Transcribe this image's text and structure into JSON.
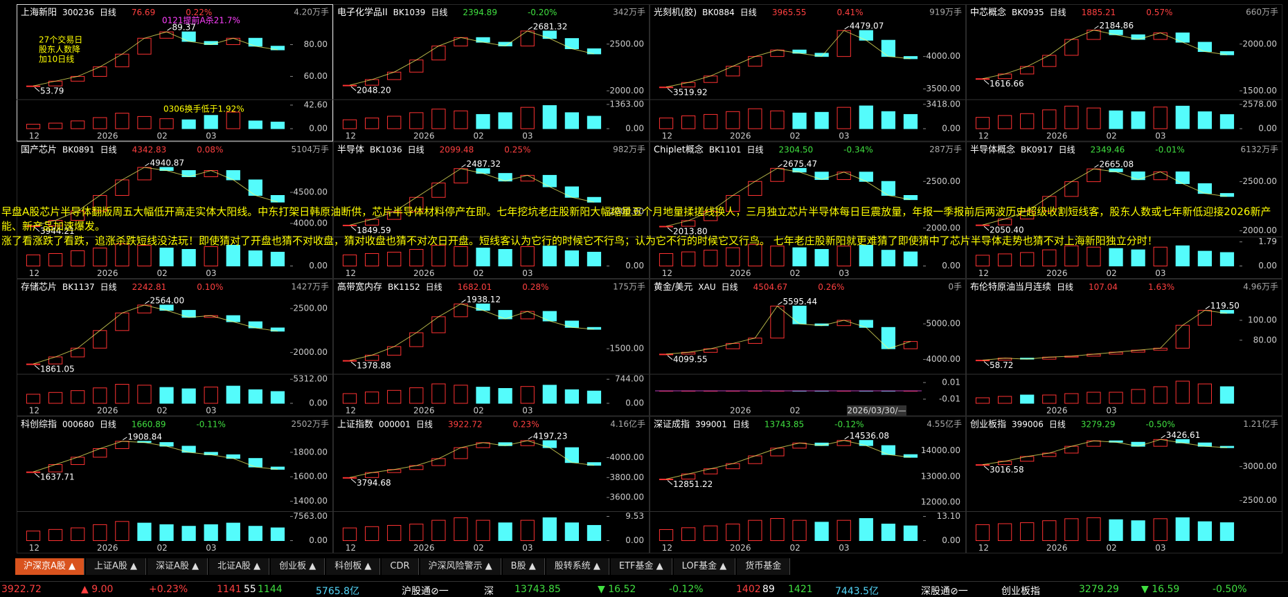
{
  "panels": [
    {
      "name": "上海新阳",
      "code": "300236",
      "period": "日线",
      "price": "76.69",
      "change": "0.22%",
      "volume": "4.20万手",
      "high": "89.37",
      "low": "53.79",
      "yticks": [
        {
          "value": 80,
          "label": "80.00"
        },
        {
          "value": 60,
          "label": "60.00"
        }
      ],
      "vticks": [
        {
          "value": 42.6,
          "label": "42.60"
        },
        {
          "value": 0,
          "label": "0.00"
        }
      ],
      "xlabels": [
        "12",
        "2026",
        "02",
        "03"
      ],
      "ylim": [
        48,
        95
      ],
      "vlim": [
        0,
        45
      ],
      "closes": [
        54,
        57,
        60,
        66,
        74,
        84,
        88,
        82,
        80,
        84,
        79,
        76.69
      ],
      "vols": [
        8,
        10,
        14,
        20,
        28,
        22,
        18,
        16,
        24,
        30,
        14,
        12
      ],
      "annotations": [
        "0121提前A杀21.7%",
        "27个交易日",
        "股东人数降",
        "加10日线",
        "0306换手低于1.92%"
      ]
    },
    {
      "name": "电子化学品II",
      "code": "BK1039",
      "period": "日线",
      "price": "2394.89",
      "change": "-0.20%",
      "volume": "342万手",
      "high": "2681.32",
      "low": "2048.20",
      "yticks": [
        {
          "value": 2500,
          "label": "2500.00"
        },
        {
          "value": 2000,
          "label": "2000.00"
        }
      ],
      "vticks": [
        {
          "value": 1363,
          "label": "1363.00"
        },
        {
          "value": 0,
          "label": "0.00"
        }
      ],
      "xlabels": [
        "12",
        "2026",
        "02",
        "03"
      ],
      "ylim": [
        1950,
        2750
      ],
      "vlim": [
        0,
        1400
      ],
      "closes": [
        2060,
        2120,
        2200,
        2330,
        2480,
        2570,
        2520,
        2480,
        2640,
        2560,
        2450,
        2394.89
      ],
      "vols": [
        500,
        600,
        700,
        900,
        1100,
        1000,
        800,
        900,
        1200,
        1300,
        900,
        700
      ]
    },
    {
      "name": "光刻机(胶)",
      "code": "BK0884",
      "period": "日线",
      "price": "3965.55",
      "change": "0.41%",
      "volume": "919万手",
      "high": "4479.07",
      "low": "3519.92",
      "yticks": [
        {
          "value": 4000,
          "label": "4000.00"
        },
        {
          "value": 3500,
          "label": "3500.00"
        }
      ],
      "vticks": [
        {
          "value": 3418,
          "label": "3418.00"
        },
        {
          "value": 0,
          "label": "0.00"
        }
      ],
      "xlabels": [
        "12",
        "2026",
        "02",
        "03"
      ],
      "ylim": [
        3400,
        4550
      ],
      "vlim": [
        0,
        3500
      ],
      "closes": [
        3530,
        3600,
        3700,
        3850,
        4000,
        4100,
        4050,
        4000,
        4400,
        4250,
        4000,
        3965.55
      ],
      "vols": [
        1500,
        1800,
        2000,
        2400,
        2800,
        2500,
        2200,
        2300,
        3000,
        3200,
        2400,
        2000
      ]
    },
    {
      "name": "中芯概念",
      "code": "BK0935",
      "period": "日线",
      "price": "1885.21",
      "change": "0.57%",
      "volume": "660万手",
      "high": "2184.86",
      "low": "1616.66",
      "yticks": [
        {
          "value": 2000,
          "label": "2000.00"
        },
        {
          "value": 1500,
          "label": "1500.00"
        }
      ],
      "vticks": [
        {
          "value": 2578,
          "label": "2578.00"
        },
        {
          "value": 0,
          "label": "0.00"
        }
      ],
      "xlabels": [
        "12",
        "2026",
        "02",
        "03"
      ],
      "ylim": [
        1450,
        2250
      ],
      "vlim": [
        0,
        2650
      ],
      "closes": [
        1630,
        1680,
        1760,
        1880,
        2050,
        2150,
        2100,
        2050,
        2120,
        2020,
        1920,
        1885.21
      ],
      "vols": [
        1200,
        1400,
        1600,
        2000,
        2400,
        2200,
        1900,
        1800,
        2300,
        2400,
        1800,
        1500
      ]
    },
    {
      "name": "国产芯片",
      "code": "BK0891",
      "period": "日线",
      "price": "4342.83",
      "change": "0.08%",
      "volume": "5104万手",
      "high": "4940.87",
      "low": "3944.21",
      "yticks": [
        {
          "value": 4500,
          "label": "4500.00"
        },
        {
          "value": 4000,
          "label": "4000.00"
        }
      ],
      "vticks": [
        {
          "value": 0,
          "label": "0.00"
        }
      ],
      "xlabels": [
        "12",
        "2026",
        "02",
        "03"
      ],
      "ylim": [
        3850,
        5050
      ],
      "vlim": [
        0,
        90
      ],
      "closes": [
        3960,
        4050,
        4200,
        4450,
        4700,
        4900,
        4850,
        4750,
        4850,
        4700,
        4450,
        4342.83
      ],
      "vols": [
        40,
        45,
        55,
        65,
        80,
        75,
        65,
        60,
        70,
        75,
        55,
        50
      ]
    },
    {
      "name": "半导体",
      "code": "BK1036",
      "period": "日线",
      "price": "2099.48",
      "change": "0.25%",
      "volume": "982万手",
      "high": "2487.32",
      "low": "1849.59",
      "yticks": [
        {
          "value": 2000,
          "label": "2000.00"
        }
      ],
      "vticks": [
        {
          "value": 0,
          "label": "0.00"
        }
      ],
      "xlabels": [
        "12",
        "2026",
        "02",
        "03"
      ],
      "ylim": [
        1780,
        2560
      ],
      "vlim": [
        0,
        900
      ],
      "closes": [
        1860,
        1920,
        2000,
        2150,
        2300,
        2450,
        2400,
        2320,
        2380,
        2260,
        2150,
        2099.48
      ],
      "vols": [
        400,
        450,
        500,
        600,
        750,
        700,
        650,
        600,
        700,
        720,
        550,
        500
      ]
    },
    {
      "name": "Chiplet概念",
      "code": "BK1101",
      "period": "日线",
      "price": "2304.50",
      "change": "-0.34%",
      "volume": "287万手",
      "high": "2675.47",
      "low": "2013.80",
      "yticks": [
        {
          "value": 2500,
          "label": "2500.00"
        },
        {
          "value": 2000,
          "label": "2000.00"
        }
      ],
      "vticks": [
        {
          "value": 0,
          "label": "0.00"
        }
      ],
      "xlabels": [
        "12",
        "2026",
        "02",
        "03"
      ],
      "ylim": [
        1950,
        2750
      ],
      "vlim": [
        0,
        300
      ],
      "closes": [
        2020,
        2080,
        2180,
        2350,
        2500,
        2640,
        2600,
        2520,
        2600,
        2500,
        2350,
        2304.5
      ],
      "vols": [
        150,
        170,
        190,
        220,
        260,
        240,
        220,
        200,
        240,
        250,
        190,
        170
      ]
    },
    {
      "name": "半导体概念",
      "code": "BK0917",
      "period": "日线",
      "price": "2349.46",
      "change": "-0.01%",
      "volume": "6132万手",
      "high": "2665.08",
      "low": "2050.40",
      "yticks": [
        {
          "value": 2500,
          "label": "2500.00"
        },
        {
          "value": 2000,
          "label": "2000.00"
        }
      ],
      "vticks": [
        {
          "value": 1.79,
          "label": "1.79"
        },
        {
          "value": 0,
          "label": "0.00"
        }
      ],
      "xlabels": [
        "12",
        "2026",
        "02",
        "03"
      ],
      "ylim": [
        1980,
        2740
      ],
      "vlim": [
        0,
        1.85
      ],
      "closes": [
        2060,
        2120,
        2200,
        2350,
        2500,
        2630,
        2600,
        2520,
        2600,
        2480,
        2380,
        2349.46
      ],
      "vols": [
        0.8,
        0.9,
        1.0,
        1.2,
        1.5,
        1.4,
        1.3,
        1.2,
        1.4,
        1.5,
        1.1,
        1.0
      ]
    },
    {
      "name": "存储芯片",
      "code": "BK1137",
      "period": "日线",
      "price": "2242.81",
      "change": "0.10%",
      "volume": "1427万手",
      "high": "2564.00",
      "low": "1861.05",
      "yticks": [
        {
          "value": 2500,
          "label": "2500.00"
        },
        {
          "value": 2000,
          "label": "2000.00"
        }
      ],
      "vticks": [
        {
          "value": 5312,
          "label": "5312.00"
        },
        {
          "value": 0,
          "label": "0.00"
        }
      ],
      "xlabels": [
        "12",
        "2026",
        "02",
        "03"
      ],
      "ylim": [
        1800,
        2650
      ],
      "vlim": [
        0,
        5500
      ],
      "closes": [
        1870,
        1950,
        2050,
        2250,
        2450,
        2540,
        2480,
        2400,
        2420,
        2350,
        2280,
        2242.81
      ],
      "vols": [
        2000,
        2400,
        2800,
        3400,
        4200,
        4000,
        3500,
        3200,
        3600,
        3800,
        3000,
        2600
      ]
    },
    {
      "name": "高带宽内存",
      "code": "BK1152",
      "period": "日线",
      "price": "1682.01",
      "change": "0.28%",
      "volume": "175万手",
      "high": "1938.12",
      "low": "1378.88",
      "yticks": [
        {
          "value": 1500,
          "label": "1500.00"
        }
      ],
      "vticks": [
        {
          "value": 744,
          "label": "744.00"
        },
        {
          "value": 0,
          "label": "0.00"
        }
      ],
      "xlabels": [
        "12",
        "2026",
        "02",
        "03"
      ],
      "ylim": [
        1300,
        2000
      ],
      "vlim": [
        0,
        770
      ],
      "closes": [
        1390,
        1440,
        1520,
        1650,
        1800,
        1920,
        1860,
        1780,
        1850,
        1760,
        1700,
        1682.01
      ],
      "vols": [
        300,
        350,
        400,
        480,
        600,
        560,
        500,
        460,
        520,
        560,
        420,
        380
      ]
    },
    {
      "name": "黄金/美元",
      "code": "XAU",
      "period": "日线",
      "price": "4504.67",
      "change": "0.26%",
      "volume": "0手",
      "high": "5595.44",
      "low": "4099.55",
      "yticks": [
        {
          "value": 5000,
          "label": "5000.00"
        },
        {
          "value": 4000,
          "label": "4000.00"
        }
      ],
      "vticks": [
        {
          "value": 0.01,
          "label": "0.01"
        },
        {
          "value": -0.01,
          "label": "-0.01"
        }
      ],
      "xlabels": [
        "2026",
        "02"
      ],
      "date": "2026/03/30/—",
      "ylim": [
        3700,
        5800
      ],
      "vlim": [
        -0.015,
        0.015
      ],
      "closes": [
        4150,
        4200,
        4300,
        4450,
        4600,
        5500,
        5000,
        4950,
        5100,
        4900,
        4300,
        4504.67
      ],
      "vols": [
        0,
        0,
        0,
        0,
        0,
        0,
        0,
        0,
        0,
        0,
        0,
        0
      ]
    },
    {
      "name": "布伦特原油当月连续",
      "code": "",
      "period": "日线",
      "price": "107.04",
      "change": "1.63%",
      "volume": "4.96万手",
      "high": "119.50",
      "low": "58.72",
      "yticks": [
        {
          "value": 100,
          "label": "100.00"
        },
        {
          "value": 80,
          "label": "80.00"
        }
      ],
      "vticks": [],
      "xlabels": [
        "2026",
        "03"
      ],
      "ylim": [
        50,
        125
      ],
      "vlim": [
        0,
        9
      ],
      "closes": [
        60,
        62,
        61,
        63,
        64,
        66,
        68,
        70,
        72,
        95,
        110,
        107.04
      ],
      "vols": [
        2,
        2.5,
        3,
        3,
        3.5,
        4,
        4,
        5,
        6,
        8,
        7,
        6
      ]
    },
    {
      "name": "科创综指",
      "code": "000680",
      "period": "日线",
      "price": "1660.89",
      "change": "-0.11%",
      "volume": "2502万手",
      "high": "1908.84",
      "low": "1637.71",
      "yticks": [
        {
          "value": 1800,
          "label": "1800.00"
        },
        {
          "value": 1600,
          "label": "1600.00"
        },
        {
          "value": 1400,
          "label": "1400.00"
        }
      ],
      "vticks": [
        {
          "value": 7563,
          "label": "7563.00"
        },
        {
          "value": 0,
          "label": "0.00"
        }
      ],
      "xlabels": [
        "12",
        "2026",
        "02",
        "03"
      ],
      "ylim": [
        1350,
        1960
      ],
      "vlim": [
        0,
        7800
      ],
      "closes": [
        1640,
        1700,
        1760,
        1830,
        1890,
        1880,
        1850,
        1800,
        1780,
        1750,
        1680,
        1660.89
      ],
      "vols": [
        3000,
        3500,
        4000,
        5000,
        6000,
        5500,
        5000,
        4500,
        5000,
        5500,
        4500,
        4000
      ]
    },
    {
      "name": "上证指数",
      "code": "000001",
      "period": "日线",
      "price": "3922.72",
      "change": "0.23%",
      "volume": "4.16亿手",
      "high": "4197.23",
      "low": "3794.68",
      "yticks": [
        {
          "value": 4000,
          "label": "4000.00"
        },
        {
          "value": 3800,
          "label": "3800.00"
        },
        {
          "value": 3600,
          "label": "3600.00"
        }
      ],
      "vticks": [
        {
          "value": 9.53,
          "label": "9.53"
        },
        {
          "value": 0,
          "label": "0.00"
        }
      ],
      "xlabels": [
        "12",
        "2026",
        "02",
        "03"
      ],
      "ylim": [
        3500,
        4250
      ],
      "vlim": [
        0,
        9.8
      ],
      "closes": [
        3800,
        3850,
        3880,
        3920,
        3990,
        4100,
        4150,
        4120,
        4170,
        4100,
        3950,
        3922.72
      ],
      "vols": [
        5,
        5.5,
        6,
        6.5,
        8,
        9,
        8,
        7,
        8,
        9,
        7,
        6
      ]
    },
    {
      "name": "深证成指",
      "code": "399001",
      "period": "日线",
      "price": "13743.85",
      "change": "-0.12%",
      "volume": "4.55亿手",
      "high": "14536.08",
      "low": "12851.22",
      "yticks": [
        {
          "value": 14000,
          "label": "14000.00"
        },
        {
          "value": 13000,
          "label": "13000.00"
        },
        {
          "value": 12000,
          "label": "12000.00"
        }
      ],
      "vticks": [
        {
          "value": 13.1,
          "label": "13.10"
        },
        {
          "value": 0,
          "label": "0.00"
        }
      ],
      "xlabels": [
        "12",
        "2026",
        "02",
        "03"
      ],
      "ylim": [
        11800,
        14700
      ],
      "vlim": [
        0,
        13.5
      ],
      "closes": [
        12900,
        13100,
        13300,
        13500,
        13800,
        14100,
        14300,
        14200,
        14400,
        14200,
        13850,
        13743.85
      ],
      "vols": [
        6,
        7,
        8,
        9,
        11,
        12,
        11,
        10,
        11,
        12,
        9,
        8
      ]
    },
    {
      "name": "创业板指",
      "code": "399006",
      "period": "日线",
      "price": "3279.29",
      "change": "-0.50%",
      "volume": "1.21亿手",
      "high": "3426.61",
      "low": "3016.58",
      "yticks": [
        {
          "value": 3000,
          "label": "3000.00"
        },
        {
          "value": 2500,
          "label": "2500.00"
        }
      ],
      "vticks": [],
      "xlabels": [
        "12",
        "2026",
        "02",
        "03"
      ],
      "ylim": [
        2400,
        3500
      ],
      "vlim": [
        0,
        1.25
      ],
      "closes": [
        3030,
        3080,
        3150,
        3200,
        3300,
        3380,
        3360,
        3300,
        3400,
        3350,
        3300,
        3279.29
      ],
      "vols": [
        0.8,
        0.85,
        0.9,
        1.0,
        1.1,
        1.15,
        1.05,
        1.0,
        1.1,
        1.15,
        0.95,
        0.9
      ]
    }
  ],
  "overlay": [
    "早盘A股芯片半导体翻版周五大幅低开高走实体大阳线。中东打架日韩原油断供，芯片半导体材料停产在即。七年挖坑老庄股新阳大幅缩量五个月地量揉搓线换人，三月独立芯片半导体每日巨震放量，年报一季报前后两波历史超级收割短线客，股东人数或七年新低迎接2026新产能、新产品加速爆发。",
    "涨了看涨跌了看跌，追涨杀跌短线没法玩！即使猜对了开盘也猜不对收盘，猜对收盘也猜不对次日开盘。短线客认为它行的时候它不行鸟；认为它不行的时候它又行鸟。 七年老庄股新阳就更难猜了即使猜中了芯片半导体走势也猜不对上海新阳独立分时！"
  ],
  "tabs": [
    "沪深京A股 ▲",
    "上证A股 ▲",
    "深证A股 ▲",
    "北证A股 ▲",
    "创业板 ▲",
    "科创板 ▲",
    "CDR",
    "沪深风险警示 ▲",
    "B股 ▲",
    "股转系统 ▲",
    "ETF基金 ▲",
    "LOF基金 ▲",
    "货币基金"
  ],
  "status": [
    {
      "text": "3922.72",
      "color": "#ff4040"
    },
    {
      "text": "▲ 9.00",
      "color": "#ff4040"
    },
    {
      "text": "+0.23%",
      "color": "#ff4040"
    },
    {
      "text": "1141",
      "color": "#ff4040"
    },
    {
      "text": "55",
      "color": "#ffffff"
    },
    {
      "text": "1144",
      "color": "#40e040"
    },
    {
      "text": "5765.8亿",
      "color": "#54d8fc"
    },
    {
      "text": "沪股通⊘一",
      "color": "#ffffff"
    },
    {
      "text": "深",
      "color": "#ffffff"
    },
    {
      "text": "13743.85",
      "color": "#40e040"
    },
    {
      "text": "▼ 16.52",
      "color": "#40e040"
    },
    {
      "text": "-0.12%",
      "color": "#40e040"
    },
    {
      "text": "1402",
      "color": "#ff4040"
    },
    {
      "text": "89",
      "color": "#ffffff"
    },
    {
      "text": "1421",
      "color": "#40e040"
    },
    {
      "text": "7443.5亿",
      "color": "#54d8fc"
    },
    {
      "text": "深股通⊘一",
      "color": "#ffffff"
    },
    {
      "text": "创业板指",
      "color": "#ffffff"
    },
    {
      "text": "3279.29",
      "color": "#40e040"
    },
    {
      "text": "▼ 16.59",
      "color": "#40e040"
    },
    {
      "text": "-0.50%",
      "color": "#40e040"
    }
  ]
}
